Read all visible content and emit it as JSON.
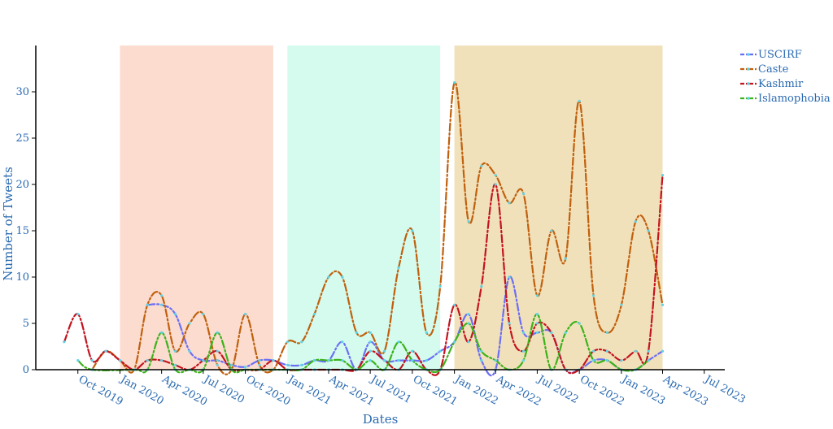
{
  "chart_data": {
    "type": "line",
    "title": "",
    "xlabel": "Dates",
    "ylabel": "Number of Tweets",
    "x_tick_labels": [
      "Oct 2019",
      "Jan 2020",
      "Apr 2020",
      "Jul 2020",
      "Oct 2020",
      "Jan 2021",
      "Apr 2021",
      "Jul 2021",
      "Oct 2021",
      "Jan 2022",
      "Apr 2022",
      "Jul 2022",
      "Oct 2022",
      "Jan 2023",
      "Apr 2023",
      "Jul 2023"
    ],
    "x_tick_dates": [
      "2019-10-01",
      "2020-01-01",
      "2020-04-01",
      "2020-07-01",
      "2020-10-01",
      "2021-01-01",
      "2021-04-01",
      "2021-07-01",
      "2021-10-01",
      "2022-01-01",
      "2022-04-01",
      "2022-07-01",
      "2022-10-01",
      "2023-01-01",
      "2023-04-01",
      "2023-07-01"
    ],
    "y_ticks": [
      0,
      5,
      10,
      15,
      20,
      25,
      30
    ],
    "xlim": [
      "2019-07-01",
      "2023-08-15"
    ],
    "ylim": [
      0,
      35
    ],
    "legend_position": "top-right",
    "grid": false,
    "shaded_periods": [
      {
        "start": "2020-01-01",
        "end": "2020-12-01",
        "color": "#fbdccf"
      },
      {
        "start": "2021-01-01",
        "end": "2021-12-01",
        "color": "#d4fbee"
      },
      {
        "start": "2022-01-01",
        "end": "2023-04-01",
        "color": "#f1e1bb"
      }
    ],
    "series": [
      {
        "name": "USCIRF",
        "color": "#6b6ef5",
        "points": [
          [
            "2020-03-01",
            7
          ],
          [
            "2020-04-01",
            7
          ],
          [
            "2020-05-01",
            6
          ],
          [
            "2020-06-01",
            2
          ],
          [
            "2020-07-01",
            1
          ],
          [
            "2020-08-01",
            1
          ],
          [
            "2020-09-01",
            0.5
          ],
          [
            "2020-10-01",
            0.3
          ],
          [
            "2020-11-01",
            1
          ],
          [
            "2020-12-01",
            1
          ],
          [
            "2021-01-01",
            0.5
          ],
          [
            "2021-02-01",
            0.5
          ],
          [
            "2021-03-01",
            1
          ],
          [
            "2021-04-01",
            1
          ],
          [
            "2021-05-01",
            3
          ],
          [
            "2021-06-01",
            0
          ],
          [
            "2021-07-01",
            3
          ],
          [
            "2021-08-01",
            1
          ],
          [
            "2021-09-01",
            1
          ],
          [
            "2021-10-01",
            1
          ],
          [
            "2021-11-01",
            1
          ],
          [
            "2021-12-01",
            2
          ],
          [
            "2022-01-01",
            3
          ],
          [
            "2022-02-01",
            6
          ],
          [
            "2022-03-01",
            1
          ],
          [
            "2022-04-01",
            0
          ],
          [
            "2022-05-01",
            10
          ],
          [
            "2022-06-01",
            4
          ],
          [
            "2022-07-01",
            4
          ],
          [
            "2022-08-01",
            4
          ],
          [
            "2022-09-01",
            0
          ],
          [
            "2022-10-01",
            0
          ],
          [
            "2022-11-01",
            1
          ],
          [
            "2022-12-01",
            1
          ],
          [
            "2023-01-01",
            0
          ],
          [
            "2023-02-01",
            0
          ],
          [
            "2023-03-01",
            1
          ],
          [
            "2023-04-01",
            2
          ]
        ]
      },
      {
        "name": "Caste",
        "color": "#c0600d",
        "points": [
          [
            "2019-11-01",
            0
          ],
          [
            "2019-12-01",
            2
          ],
          [
            "2020-01-01",
            1
          ],
          [
            "2020-02-01",
            0
          ],
          [
            "2020-03-01",
            7
          ],
          [
            "2020-04-01",
            8
          ],
          [
            "2020-05-01",
            2
          ],
          [
            "2020-06-01",
            5
          ],
          [
            "2020-07-01",
            6
          ],
          [
            "2020-08-01",
            0.5
          ],
          [
            "2020-09-01",
            0
          ],
          [
            "2020-10-01",
            6
          ],
          [
            "2020-11-01",
            0.5
          ],
          [
            "2020-12-01",
            0
          ],
          [
            "2021-01-01",
            3
          ],
          [
            "2021-02-01",
            3
          ],
          [
            "2021-03-01",
            6
          ],
          [
            "2021-04-01",
            10
          ],
          [
            "2021-05-01",
            10
          ],
          [
            "2021-06-01",
            4
          ],
          [
            "2021-07-01",
            4
          ],
          [
            "2021-08-01",
            2
          ],
          [
            "2021-09-01",
            11
          ],
          [
            "2021-10-01",
            15
          ],
          [
            "2021-11-01",
            4
          ],
          [
            "2021-12-01",
            9
          ],
          [
            "2022-01-01",
            31
          ],
          [
            "2022-02-01",
            16
          ],
          [
            "2022-03-01",
            22
          ],
          [
            "2022-04-01",
            21
          ],
          [
            "2022-05-01",
            18
          ],
          [
            "2022-06-01",
            19
          ],
          [
            "2022-07-01",
            8
          ],
          [
            "2022-08-01",
            15
          ],
          [
            "2022-09-01",
            12
          ],
          [
            "2022-10-01",
            29
          ],
          [
            "2022-11-01",
            8
          ],
          [
            "2022-12-01",
            4
          ],
          [
            "2023-01-01",
            7
          ],
          [
            "2023-02-01",
            16
          ],
          [
            "2023-03-01",
            15
          ],
          [
            "2023-04-01",
            7
          ]
        ]
      },
      {
        "name": "Kashmir",
        "color": "#c3141f",
        "points": [
          [
            "2019-09-01",
            3
          ],
          [
            "2019-10-01",
            6
          ],
          [
            "2019-11-01",
            1
          ],
          [
            "2019-12-01",
            2
          ],
          [
            "2020-01-01",
            1
          ],
          [
            "2020-02-01",
            0
          ],
          [
            "2020-03-01",
            1
          ],
          [
            "2020-04-01",
            1
          ],
          [
            "2020-05-01",
            0.5
          ],
          [
            "2020-06-01",
            0
          ],
          [
            "2020-07-01",
            1
          ],
          [
            "2020-08-01",
            2
          ],
          [
            "2020-09-01",
            0
          ],
          [
            "2020-10-01",
            0
          ],
          [
            "2020-11-01",
            0
          ],
          [
            "2020-12-01",
            1
          ],
          [
            "2021-01-01",
            0
          ],
          [
            "2021-02-01",
            0
          ],
          [
            "2021-03-01",
            0
          ],
          [
            "2021-04-01",
            0
          ],
          [
            "2021-05-01",
            0
          ],
          [
            "2021-06-01",
            0
          ],
          [
            "2021-07-01",
            2
          ],
          [
            "2021-08-01",
            1
          ],
          [
            "2021-09-01",
            0
          ],
          [
            "2021-10-01",
            2
          ],
          [
            "2021-11-01",
            0
          ],
          [
            "2021-12-01",
            0
          ],
          [
            "2022-01-01",
            7
          ],
          [
            "2022-02-01",
            3
          ],
          [
            "2022-03-01",
            9
          ],
          [
            "2022-04-01",
            20
          ],
          [
            "2022-05-01",
            5
          ],
          [
            "2022-06-01",
            2
          ],
          [
            "2022-07-01",
            5
          ],
          [
            "2022-08-01",
            4
          ],
          [
            "2022-09-01",
            0
          ],
          [
            "2022-10-01",
            0
          ],
          [
            "2022-11-01",
            2
          ],
          [
            "2022-12-01",
            2
          ],
          [
            "2023-01-01",
            1
          ],
          [
            "2023-02-01",
            2
          ],
          [
            "2023-03-01",
            2
          ],
          [
            "2023-04-01",
            21
          ]
        ]
      },
      {
        "name": "Islamophobia",
        "color": "#3cb21a",
        "points": [
          [
            "2019-10-01",
            1
          ],
          [
            "2019-11-01",
            0
          ],
          [
            "2020-02-01",
            0
          ],
          [
            "2020-03-01",
            0
          ],
          [
            "2020-04-01",
            4
          ],
          [
            "2020-05-01",
            0
          ],
          [
            "2020-06-01",
            0
          ],
          [
            "2020-07-01",
            0
          ],
          [
            "2020-08-01",
            4
          ],
          [
            "2020-09-01",
            0
          ],
          [
            "2020-10-01",
            0
          ],
          [
            "2020-11-01",
            0
          ],
          [
            "2020-12-01",
            0
          ],
          [
            "2021-01-01",
            0
          ],
          [
            "2021-02-01",
            0
          ],
          [
            "2021-03-01",
            1
          ],
          [
            "2021-04-01",
            1
          ],
          [
            "2021-05-01",
            1
          ],
          [
            "2021-06-01",
            0
          ],
          [
            "2021-07-01",
            1
          ],
          [
            "2021-08-01",
            0
          ],
          [
            "2021-09-01",
            3
          ],
          [
            "2021-10-01",
            1
          ],
          [
            "2021-11-01",
            0
          ],
          [
            "2021-12-01",
            0
          ],
          [
            "2022-01-01",
            3
          ],
          [
            "2022-02-01",
            5
          ],
          [
            "2022-03-01",
            2
          ],
          [
            "2022-04-01",
            1
          ],
          [
            "2022-05-01",
            0
          ],
          [
            "2022-06-01",
            1
          ],
          [
            "2022-07-01",
            6
          ],
          [
            "2022-08-01",
            0
          ],
          [
            "2022-09-01",
            4
          ],
          [
            "2022-10-01",
            5
          ],
          [
            "2022-11-01",
            1
          ],
          [
            "2022-12-01",
            1
          ],
          [
            "2023-01-01",
            0
          ],
          [
            "2023-02-01",
            0
          ],
          [
            "2023-03-01",
            1
          ]
        ]
      }
    ]
  }
}
